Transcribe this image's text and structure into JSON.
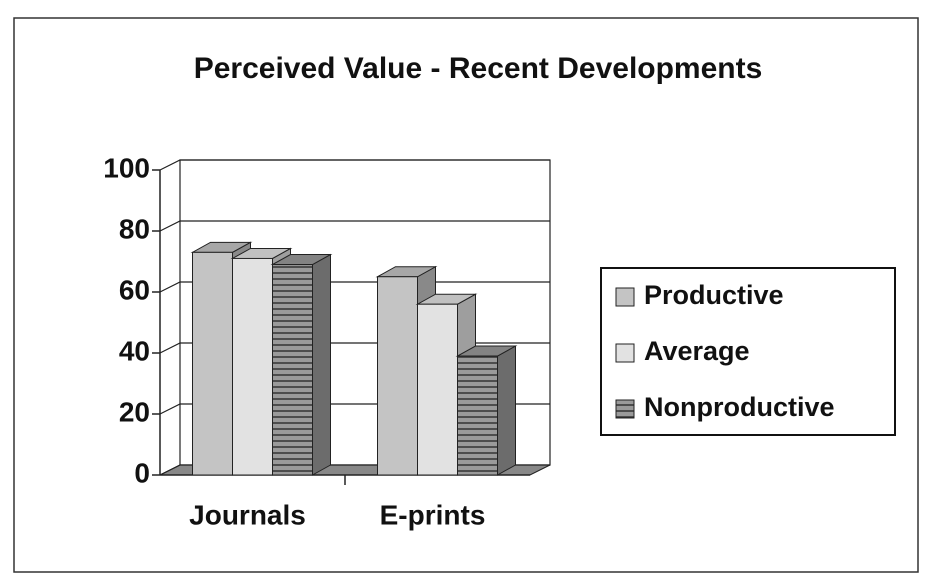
{
  "chart_data": {
    "type": "bar3d",
    "title": "Perceived Value - Recent Developments",
    "categories": [
      "Journals",
      "E-prints"
    ],
    "series": [
      {
        "name": "Productive",
        "color": "#c4c4c4",
        "values": [
          73,
          65
        ]
      },
      {
        "name": "Average",
        "color": "#e2e2e2",
        "values": [
          71,
          56
        ]
      },
      {
        "name": "Nonproductive",
        "color": "#9a9a9a",
        "values": [
          69,
          39
        ]
      }
    ],
    "ylim": [
      0,
      100
    ],
    "yticks": [
      0,
      20,
      40,
      60,
      80,
      100
    ],
    "grid": true,
    "legend": "right"
  }
}
